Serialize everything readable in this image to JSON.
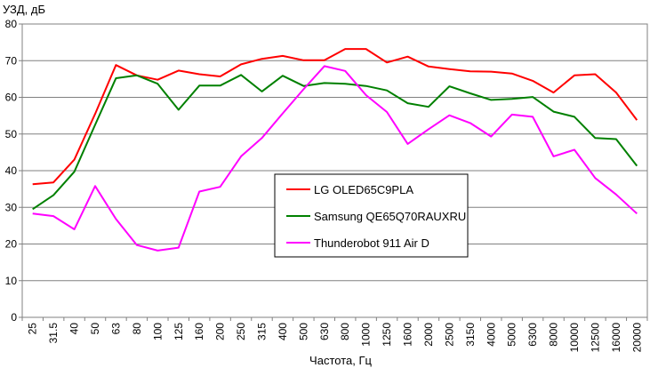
{
  "chart_data": {
    "type": "line",
    "title": "",
    "ylabel": "УЗД, дБ",
    "xlabel": "Частота, Гц",
    "ylim": [
      0,
      80
    ],
    "yticks": [
      0,
      10,
      20,
      30,
      40,
      50,
      60,
      70,
      80
    ],
    "grid": "horizontal",
    "legend_position": "center",
    "categories": [
      "25",
      "31.5",
      "40",
      "50",
      "63",
      "80",
      "100",
      "125",
      "160",
      "200",
      "250",
      "315",
      "400",
      "500",
      "630",
      "800",
      "1000",
      "1250",
      "1600",
      "2000",
      "2500",
      "3150",
      "4000",
      "5000",
      "6300",
      "8000",
      "10000",
      "12500",
      "16000",
      "20000"
    ],
    "series": [
      {
        "name": "LG OLED65C9PLA",
        "color": "#ff0000",
        "values": [
          36.3,
          36.8,
          43.0,
          55.5,
          68.8,
          66.0,
          64.8,
          67.3,
          66.3,
          65.7,
          69.0,
          70.5,
          71.3,
          70.1,
          70.1,
          73.2,
          73.2,
          69.5,
          71.1,
          68.4,
          67.7,
          67.1,
          67.0,
          66.5,
          64.5,
          61.3,
          66.0,
          66.3,
          61.3,
          53.8
        ]
      },
      {
        "name": "Samsung QE65Q70RAUXRU",
        "color": "#008000",
        "values": [
          29.5,
          33.3,
          39.7,
          52.5,
          65.2,
          66.0,
          63.7,
          56.6,
          63.2,
          63.2,
          66.1,
          61.6,
          65.9,
          63.1,
          63.9,
          63.7,
          63.1,
          61.9,
          58.4,
          57.4,
          63.0,
          61.1,
          59.3,
          59.6,
          60.1,
          56.1,
          54.7,
          48.9,
          48.6,
          41.3
        ]
      },
      {
        "name": "Thunderobot 911 Air D",
        "color": "#ff00ff",
        "values": [
          28.3,
          27.6,
          24.0,
          35.8,
          26.8,
          19.7,
          18.2,
          19.0,
          34.3,
          35.6,
          43.9,
          48.9,
          55.6,
          62.2,
          68.5,
          67.2,
          60.6,
          56.0,
          47.3,
          51.3,
          55.1,
          53.0,
          49.3,
          55.3,
          54.7,
          43.9,
          45.7,
          38.0,
          33.5,
          28.3
        ]
      }
    ]
  }
}
